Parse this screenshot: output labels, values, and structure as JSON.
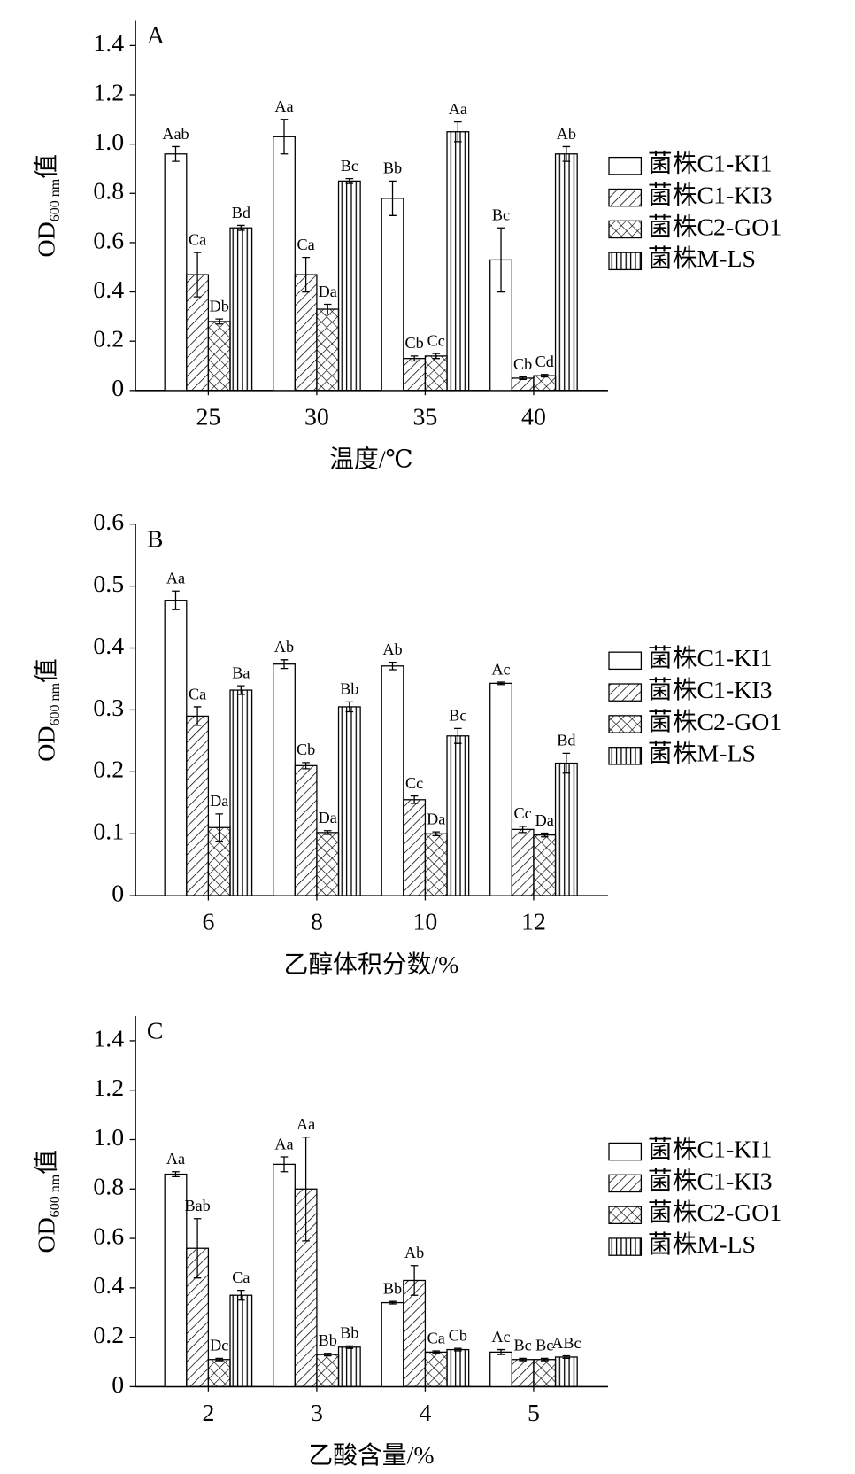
{
  "chart_data": [
    {
      "type": "bar",
      "panel": "A",
      "xlabel": "温度/℃",
      "ylabel": {
        "main": "OD",
        "sub": "600 nm",
        "suffix": "值"
      },
      "categories": [
        "25",
        "30",
        "35",
        "40"
      ],
      "ylim": [
        0,
        1.5
      ],
      "yticks": [
        0,
        0.2,
        0.4,
        0.6,
        0.8,
        {
          "value": 1,
          "label": "1.0"
        },
        1.2,
        1.4
      ],
      "series": [
        {
          "name": "菌株C1-KI1",
          "color": "#000000",
          "pattern": "none",
          "values": [
            0.96,
            1.03,
            0.78,
            0.53
          ],
          "errors": [
            0.03,
            0.07,
            0.07,
            0.13
          ],
          "letters": [
            "Aab",
            "Aa",
            "Bb",
            "Bc"
          ]
        },
        {
          "name": "菌株C1-KI3",
          "color": "#000000",
          "pattern": "diagonal",
          "values": [
            0.47,
            0.47,
            0.13,
            0.05
          ],
          "errors": [
            0.09,
            0.07,
            0.01,
            0.005
          ],
          "letters": [
            "Ca",
            "Ca",
            "Cb",
            "Cb"
          ]
        },
        {
          "name": "菌株C2-GO1",
          "color": "#000000",
          "pattern": "crosshatch",
          "values": [
            0.28,
            0.33,
            0.14,
            0.06
          ],
          "errors": [
            0.01,
            0.02,
            0.01,
            0.005
          ],
          "letters": [
            "Db",
            "Da",
            "Cc",
            "Cd"
          ]
        },
        {
          "name": "菌株M-LS",
          "color": "#000000",
          "pattern": "vertical",
          "values": [
            0.66,
            0.85,
            1.05,
            0.96
          ],
          "errors": [
            0.01,
            0.01,
            0.04,
            0.03
          ],
          "letters": [
            "Bd",
            "Bc",
            "Aa",
            "Ab"
          ]
        }
      ]
    },
    {
      "type": "bar",
      "panel": "B",
      "xlabel": "乙醇体积分数/%",
      "ylabel": {
        "main": "OD",
        "sub": "600 nm",
        "suffix": "值"
      },
      "categories": [
        "6",
        "8",
        "10",
        "12"
      ],
      "ylim": [
        0,
        0.6
      ],
      "yticks": [
        0,
        0.1,
        0.2,
        0.3,
        0.4,
        0.5,
        0.6
      ],
      "series": [
        {
          "name": "菌株C1-KI1",
          "color": "#000000",
          "pattern": "none",
          "values": [
            0.477,
            0.374,
            0.371,
            0.343
          ],
          "errors": [
            0.015,
            0.007,
            0.006,
            0.002
          ],
          "letters": [
            "Aa",
            "Ab",
            "Ab",
            "Ac"
          ]
        },
        {
          "name": "菌株C1-KI3",
          "color": "#000000",
          "pattern": "diagonal",
          "values": [
            0.29,
            0.21,
            0.155,
            0.107
          ],
          "errors": [
            0.015,
            0.005,
            0.006,
            0.005
          ],
          "letters": [
            "Ca",
            "Cb",
            "Cc",
            "Cc"
          ]
        },
        {
          "name": "菌株C2-GO1",
          "color": "#000000",
          "pattern": "crosshatch",
          "values": [
            0.11,
            0.102,
            0.1,
            0.098
          ],
          "errors": [
            0.022,
            0.003,
            0.003,
            0.003
          ],
          "letters": [
            "Da",
            "Da",
            "Da",
            "Da"
          ]
        },
        {
          "name": "菌株M-LS",
          "color": "#000000",
          "pattern": "vertical",
          "values": [
            0.332,
            0.305,
            0.258,
            0.214
          ],
          "errors": [
            0.007,
            0.008,
            0.012,
            0.016
          ],
          "letters": [
            "Ba",
            "Bb",
            "Bc",
            "Bd"
          ]
        }
      ]
    },
    {
      "type": "bar",
      "panel": "C",
      "xlabel": "乙酸含量/%",
      "ylabel": {
        "main": "OD",
        "sub": "600 nm",
        "suffix": "值"
      },
      "categories": [
        "2",
        "3",
        "4",
        "5"
      ],
      "ylim": [
        0,
        1.5
      ],
      "yticks": [
        0,
        0.2,
        0.4,
        0.6,
        0.8,
        {
          "value": 1,
          "label": "1.0"
        },
        1.2,
        1.4
      ],
      "series": [
        {
          "name": "菌株C1-KI1",
          "color": "#000000",
          "pattern": "none",
          "values": [
            0.86,
            0.9,
            0.34,
            0.14
          ],
          "errors": [
            0.01,
            0.03,
            0.005,
            0.01
          ],
          "letters": [
            "Aa",
            "Aa",
            "Bb",
            "Ac"
          ]
        },
        {
          "name": "菌株C1-KI3",
          "color": "#000000",
          "pattern": "diagonal",
          "values": [
            0.56,
            0.8,
            0.43,
            0.11
          ],
          "errors": [
            0.12,
            0.21,
            0.06,
            0.005
          ],
          "letters": [
            "Bab",
            "Aa",
            "Ab",
            "Bc"
          ]
        },
        {
          "name": "菌株C2-GO1",
          "color": "#000000",
          "pattern": "crosshatch",
          "values": [
            0.11,
            0.13,
            0.14,
            0.11
          ],
          "errors": [
            0.005,
            0.005,
            0.005,
            0.005
          ],
          "letters": [
            "Dc",
            "Bb",
            "Ca",
            "Bc"
          ]
        },
        {
          "name": "菌株M-LS",
          "color": "#000000",
          "pattern": "vertical",
          "values": [
            0.37,
            0.16,
            0.15,
            0.12
          ],
          "errors": [
            0.02,
            0.005,
            0.005,
            0.005
          ],
          "letters": [
            "Ca",
            "Bb",
            "Cb",
            "ABc"
          ]
        }
      ]
    }
  ]
}
